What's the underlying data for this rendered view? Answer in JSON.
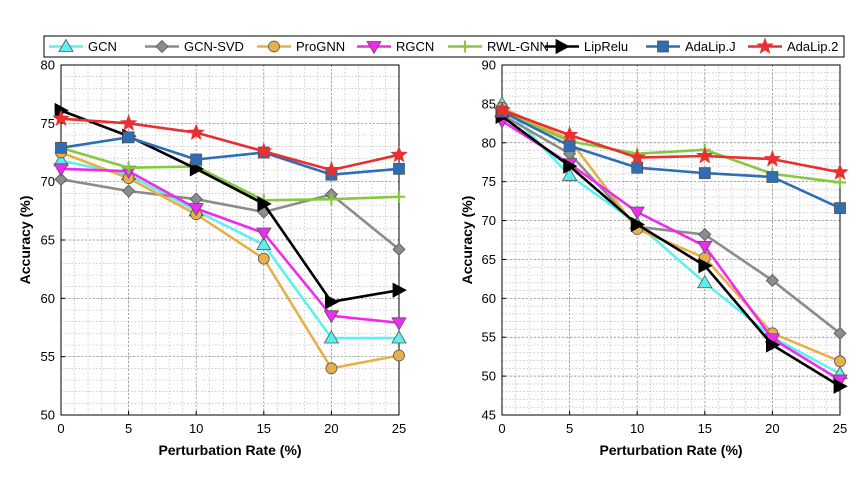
{
  "legend": [
    "GCN",
    "GCN-SVD",
    "ProGNN",
    "RGCN",
    "RWL-GNN",
    "LipRelu",
    "AdaLip.J",
    "AdaLip.2"
  ],
  "series_styles": [
    {
      "name": "GCN",
      "color": "#5ef0f0",
      "marker": "triangle-up"
    },
    {
      "name": "GCN-SVD",
      "color": "#8c8c8c",
      "marker": "diamond"
    },
    {
      "name": "ProGNN",
      "color": "#e8b04a",
      "marker": "circle"
    },
    {
      "name": "RGCN",
      "color": "#ee2cee",
      "marker": "triangle-down"
    },
    {
      "name": "RWL-GNN",
      "color": "#88c840",
      "marker": "plus"
    },
    {
      "name": "LipRelu",
      "color": "#000000",
      "marker": "triangle-right"
    },
    {
      "name": "AdaLip.J",
      "color": "#2f6db5",
      "marker": "square"
    },
    {
      "name": "AdaLip.2",
      "color": "#e83030",
      "marker": "star"
    }
  ],
  "chart_data": [
    {
      "type": "line",
      "xlabel": "Perturbation Rate (%)",
      "ylabel": "Accuracy (%)",
      "x": [
        0,
        5,
        10,
        15,
        20,
        25
      ],
      "xlim": [
        0,
        25
      ],
      "ylim": [
        50,
        80
      ],
      "yticks": [
        "50",
        "55",
        "60",
        "65",
        "70",
        "75",
        "80"
      ],
      "xticks": [
        "0",
        "5",
        "10",
        "15",
        "20",
        "25"
      ],
      "grid": true,
      "series": [
        {
          "name": "GCN",
          "values": [
            71.8,
            70.6,
            67.5,
            64.6,
            56.6,
            56.6
          ]
        },
        {
          "name": "GCN-SVD",
          "values": [
            70.2,
            69.2,
            68.5,
            67.4,
            68.9,
            64.2
          ]
        },
        {
          "name": "ProGNN",
          "values": [
            72.5,
            70.3,
            67.2,
            63.4,
            54.0,
            55.1
          ]
        },
        {
          "name": "RGCN",
          "values": [
            71.1,
            70.9,
            67.7,
            65.6,
            58.5,
            57.9
          ]
        },
        {
          "name": "RWL-GNN",
          "values": [
            72.9,
            71.2,
            71.3,
            68.4,
            68.5,
            68.7
          ]
        },
        {
          "name": "LipRelu",
          "values": [
            76.1,
            73.9,
            71.1,
            68.1,
            59.7,
            60.7
          ]
        },
        {
          "name": "AdaLip.J",
          "values": [
            72.9,
            73.8,
            71.9,
            72.5,
            70.6,
            71.1
          ]
        },
        {
          "name": "AdaLip.2",
          "values": [
            75.4,
            75.0,
            74.2,
            72.6,
            71.0,
            72.3
          ]
        }
      ]
    },
    {
      "type": "line",
      "xlabel": "Perturbation Rate (%)",
      "ylabel": "Accuracy (%)",
      "x": [
        0,
        5,
        10,
        15,
        20,
        25
      ],
      "xlim": [
        0,
        25
      ],
      "ylim": [
        45,
        90
      ],
      "yticks": [
        "45",
        "50",
        "55",
        "60",
        "65",
        "70",
        "75",
        "80",
        "85",
        "90"
      ],
      "xticks": [
        "0",
        "5",
        "10",
        "15",
        "20",
        "25"
      ],
      "grid": true,
      "series": [
        {
          "name": "GCN",
          "values": [
            85.0,
            75.8,
            69.6,
            62.0,
            55.0,
            50.3
          ]
        },
        {
          "name": "GCN-SVD",
          "values": [
            83.6,
            78.6,
            69.2,
            68.2,
            62.3,
            55.5
          ]
        },
        {
          "name": "ProGNN",
          "values": [
            84.5,
            80.4,
            68.9,
            65.2,
            55.5,
            51.9
          ]
        },
        {
          "name": "RGCN",
          "values": [
            82.8,
            77.3,
            71.1,
            66.7,
            54.8,
            49.5
          ]
        },
        {
          "name": "RWL-GNN",
          "values": [
            84.0,
            80.2,
            78.6,
            79.1,
            76.0,
            74.9
          ]
        },
        {
          "name": "LipRelu",
          "values": [
            83.4,
            77.0,
            69.5,
            64.2,
            54.0,
            48.7
          ]
        },
        {
          "name": "AdaLip.J",
          "values": [
            84.0,
            79.6,
            76.8,
            76.1,
            75.6,
            71.6
          ]
        },
        {
          "name": "AdaLip.2",
          "values": [
            84.2,
            81.0,
            78.1,
            78.3,
            77.9,
            76.2
          ]
        }
      ]
    }
  ]
}
